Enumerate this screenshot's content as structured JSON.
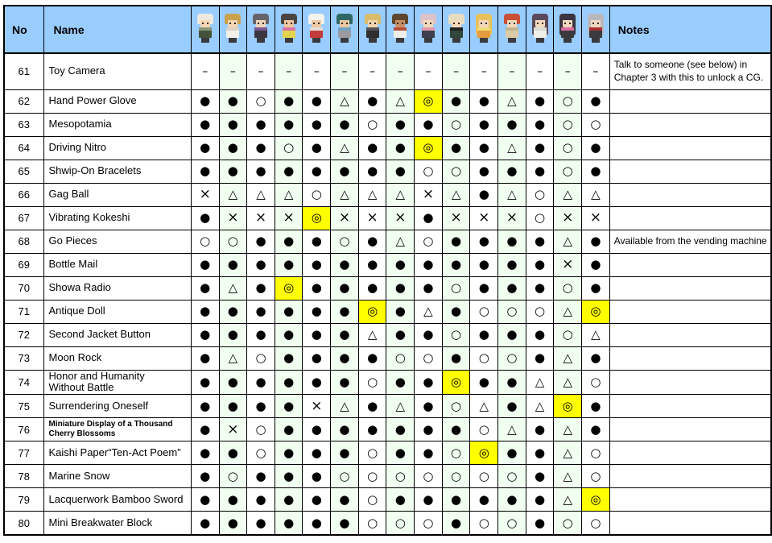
{
  "header": {
    "no_label": "No",
    "name_label": "Name",
    "notes_label": "Notes"
  },
  "colors": {
    "header_bg": "#99CCFF",
    "alt_column_bg": "#F0FFF0",
    "highlight_bg": "#FFFF00",
    "border": "#000000"
  },
  "symbols_used": [
    "●",
    "○",
    "△",
    "×",
    "◎",
    "–"
  ],
  "characters": [
    {
      "id": "nagito-komaeda",
      "hair": "#EDE9DF",
      "skin": "#F6D7B2",
      "outfit": "#45523B",
      "accent": "#8C9B7A",
      "hair_style": "short"
    },
    {
      "id": "byakuya-togami",
      "hair": "#C9A24E",
      "skin": "#F6D7B2",
      "outfit": "#F2EFE8",
      "accent": "#D8D2C4",
      "hair_style": "short"
    },
    {
      "id": "gundham-tanaka",
      "hair": "#66646B",
      "skin": "#EED6B8",
      "outfit": "#3C3640",
      "accent": "#7C5A96",
      "hair_style": "short"
    },
    {
      "id": "kazuichi-soda",
      "hair": "#4A4442",
      "skin": "#EEC79E",
      "outfit": "#E3D34F",
      "accent": "#D96FA4",
      "hair_style": "short"
    },
    {
      "id": "teruteru-hanamura",
      "hair": "#F4F2EC",
      "skin": "#EFC9A3",
      "outfit": "#C43B3B",
      "accent": "#E8E6DE",
      "hair_style": "short"
    },
    {
      "id": "nekomaru-nidai",
      "hair": "#2E6763",
      "skin": "#EBC9A0",
      "outfit": "#9A9AA0",
      "accent": "#6FA3C8",
      "hair_style": "short"
    },
    {
      "id": "fuyuhiko-kuzuryu",
      "hair": "#D9BC6A",
      "skin": "#F2D4AE",
      "outfit": "#2E2E30",
      "accent": "#55555A",
      "hair_style": "short"
    },
    {
      "id": "akane-owari",
      "hair": "#5E4630",
      "skin": "#C98F63",
      "outfit": "#EFEFEA",
      "accent": "#B0452F",
      "hair_style": "short"
    },
    {
      "id": "chiaki-nanami",
      "hair": "#DCC3C9",
      "skin": "#F4D9BC",
      "outfit": "#3F3F4E",
      "accent": "#E9A0B0",
      "hair_style": "short"
    },
    {
      "id": "sonia-nevermind",
      "hair": "#E6DCBE",
      "skin": "#F4D9BC",
      "outfit": "#31473B",
      "accent": "#202020",
      "hair_style": "short"
    },
    {
      "id": "hiyoko-saionji",
      "hair": "#E7C25B",
      "skin": "#F4D9BC",
      "outfit": "#E59B3F",
      "accent": "#F2E27A",
      "hair_style": "long"
    },
    {
      "id": "mahiru-koizumi",
      "hair": "#C94F35",
      "skin": "#F4D9BC",
      "outfit": "#D9CBA8",
      "accent": "#C2B390",
      "hair_style": "short"
    },
    {
      "id": "mikan-tsumiki",
      "hair": "#5A4A5C",
      "skin": "#F4D9BC",
      "outfit": "#EFEFEA",
      "accent": "#D9D9D2",
      "hair_style": "long"
    },
    {
      "id": "ibuki-mioda",
      "hair": "#3A3440",
      "skin": "#F4D9BC",
      "outfit": "#3A3A3E",
      "accent": "#E070A8",
      "hair_style": "long"
    },
    {
      "id": "peko-pekoyama",
      "hair": "#B9B9BD",
      "skin": "#EFD9C4",
      "outfit": "#3A3A40",
      "accent": "#B03030",
      "hair_style": "long"
    }
  ],
  "rows": [
    {
      "no": "61",
      "name": "Toy Camera",
      "small_name": false,
      "symbols": [
        "–",
        "–",
        "–",
        "–",
        "–",
        "–",
        "–",
        "–",
        "–",
        "–",
        "–",
        "–",
        "–",
        "–",
        "–"
      ],
      "note": "Talk to someone (see below) in Chapter 3 with this to unlock a CG."
    },
    {
      "no": "62",
      "name": "Hand Power Glove",
      "small_name": false,
      "symbols": [
        "●",
        "●",
        "○",
        "●",
        "●",
        "△",
        "●",
        "△",
        "◎",
        "●",
        "●",
        "△",
        "●",
        "○",
        "●"
      ],
      "note": ""
    },
    {
      "no": "63",
      "name": "Mesopotamia",
      "small_name": false,
      "symbols": [
        "●",
        "●",
        "●",
        "●",
        "●",
        "●",
        "○",
        "●",
        "●",
        "○",
        "●",
        "●",
        "●",
        "○",
        "○"
      ],
      "note": ""
    },
    {
      "no": "64",
      "name": "Driving Nitro",
      "small_name": false,
      "symbols": [
        "●",
        "●",
        "●",
        "○",
        "●",
        "△",
        "●",
        "●",
        "◎",
        "●",
        "●",
        "△",
        "●",
        "○",
        "●"
      ],
      "note": ""
    },
    {
      "no": "65",
      "name": "Shwip-On Bracelets",
      "small_name": false,
      "symbols": [
        "●",
        "●",
        "●",
        "●",
        "●",
        "●",
        "●",
        "●",
        "○",
        "○",
        "●",
        "●",
        "●",
        "○",
        "●"
      ],
      "note": ""
    },
    {
      "no": "66",
      "name": "Gag Ball",
      "small_name": false,
      "symbols": [
        "×",
        "△",
        "△",
        "△",
        "○",
        "△",
        "△",
        "△",
        "×",
        "△",
        "●",
        "△",
        "○",
        "△",
        "△"
      ],
      "note": ""
    },
    {
      "no": "67",
      "name": "Vibrating Kokeshi",
      "small_name": false,
      "symbols": [
        "●",
        "×",
        "×",
        "×",
        "◎",
        "×",
        "×",
        "×",
        "●",
        "×",
        "×",
        "×",
        "○",
        "×",
        "×"
      ],
      "note": ""
    },
    {
      "no": "68",
      "name": "Go Pieces",
      "small_name": false,
      "symbols": [
        "○",
        "○",
        "●",
        "●",
        "●",
        "○",
        "●",
        "△",
        "○",
        "●",
        "●",
        "●",
        "●",
        "△",
        "●"
      ],
      "note": "Available from the vending machine"
    },
    {
      "no": "69",
      "name": "Bottle Mail",
      "small_name": false,
      "symbols": [
        "●",
        "●",
        "●",
        "●",
        "●",
        "●",
        "●",
        "●",
        "●",
        "●",
        "●",
        "●",
        "●",
        "×",
        "●"
      ],
      "note": ""
    },
    {
      "no": "70",
      "name": "Showa Radio",
      "small_name": false,
      "symbols": [
        "●",
        "△",
        "●",
        "◎",
        "●",
        "●",
        "●",
        "●",
        "●",
        "○",
        "●",
        "●",
        "●",
        "○",
        "●"
      ],
      "note": ""
    },
    {
      "no": "71",
      "name": "Antique Doll",
      "small_name": false,
      "symbols": [
        "●",
        "●",
        "●",
        "●",
        "●",
        "●",
        "◎",
        "●",
        "△",
        "●",
        "○",
        "○",
        "○",
        "△",
        "◎"
      ],
      "note": ""
    },
    {
      "no": "72",
      "name": "Second Jacket Button",
      "small_name": false,
      "symbols": [
        "●",
        "●",
        "●",
        "●",
        "●",
        "●",
        "△",
        "●",
        "●",
        "○",
        "●",
        "●",
        "●",
        "○",
        "△"
      ],
      "note": ""
    },
    {
      "no": "73",
      "name": "Moon Rock",
      "small_name": false,
      "symbols": [
        "●",
        "△",
        "○",
        "●",
        "●",
        "●",
        "●",
        "○",
        "○",
        "●",
        "○",
        "○",
        "●",
        "△",
        "●"
      ],
      "note": ""
    },
    {
      "no": "74",
      "name": "Honor and Humanity\nWithout Battle",
      "small_name": false,
      "symbols": [
        "●",
        "●",
        "●",
        "●",
        "●",
        "●",
        "○",
        "●",
        "●",
        "◎",
        "●",
        "●",
        "△",
        "△",
        "○"
      ],
      "note": ""
    },
    {
      "no": "75",
      "name": "Surrendering Oneself",
      "small_name": false,
      "symbols": [
        "●",
        "●",
        "●",
        "●",
        "×",
        "△",
        "●",
        "△",
        "●",
        "○",
        "△",
        "●",
        "△",
        "◎",
        "●"
      ],
      "note": ""
    },
    {
      "no": "76",
      "name": "Miniature Display of a Thousand\nCherry Blossoms",
      "small_name": true,
      "symbols": [
        "●",
        "×",
        "○",
        "●",
        "●",
        "●",
        "●",
        "●",
        "●",
        "●",
        "○",
        "△",
        "●",
        "△",
        "●"
      ],
      "note": ""
    },
    {
      "no": "77",
      "name": "Kaishi Paper“Ten-Act Poem”",
      "small_name": false,
      "symbols": [
        "●",
        "●",
        "○",
        "●",
        "●",
        "●",
        "○",
        "●",
        "●",
        "○",
        "◎",
        "●",
        "●",
        "△",
        "○"
      ],
      "note": ""
    },
    {
      "no": "78",
      "name": "Marine Snow",
      "small_name": false,
      "symbols": [
        "●",
        "○",
        "●",
        "●",
        "●",
        "○",
        "○",
        "○",
        "○",
        "○",
        "○",
        "○",
        "●",
        "△",
        "○"
      ],
      "note": ""
    },
    {
      "no": "79",
      "name": "Lacquerwork Bamboo Sword",
      "small_name": false,
      "symbols": [
        "●",
        "●",
        "●",
        "●",
        "●",
        "●",
        "○",
        "●",
        "●",
        "●",
        "●",
        "●",
        "●",
        "△",
        "◎"
      ],
      "note": ""
    },
    {
      "no": "80",
      "name": "Mini Breakwater Block",
      "small_name": false,
      "symbols": [
        "●",
        "●",
        "●",
        "●",
        "●",
        "●",
        "○",
        "○",
        "○",
        "●",
        "○",
        "○",
        "●",
        "○",
        "○"
      ],
      "note": ""
    }
  ]
}
